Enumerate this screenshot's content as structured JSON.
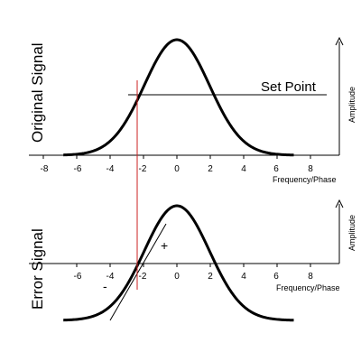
{
  "top_panel": {
    "side_label": "Original Signal",
    "axis_label": "Frequency/Phase",
    "amplitude_label": "Amplitude",
    "setpoint_label": "Set Point",
    "ticks": [
      "-8",
      "-6",
      "-4",
      "-2",
      "0",
      "2",
      "4",
      "6",
      "8"
    ]
  },
  "bottom_panel": {
    "side_label": "Error Signal",
    "axis_label": "Frequency/Phase",
    "amplitude_label": "Amplitude",
    "ticks": [
      "-6",
      "-4",
      "-2",
      "0",
      "2",
      "4",
      "6",
      "8"
    ],
    "plus_label": "+",
    "minus_label": "-"
  },
  "colors": {
    "curve": "#000000",
    "marker_line": "#cc2222"
  }
}
